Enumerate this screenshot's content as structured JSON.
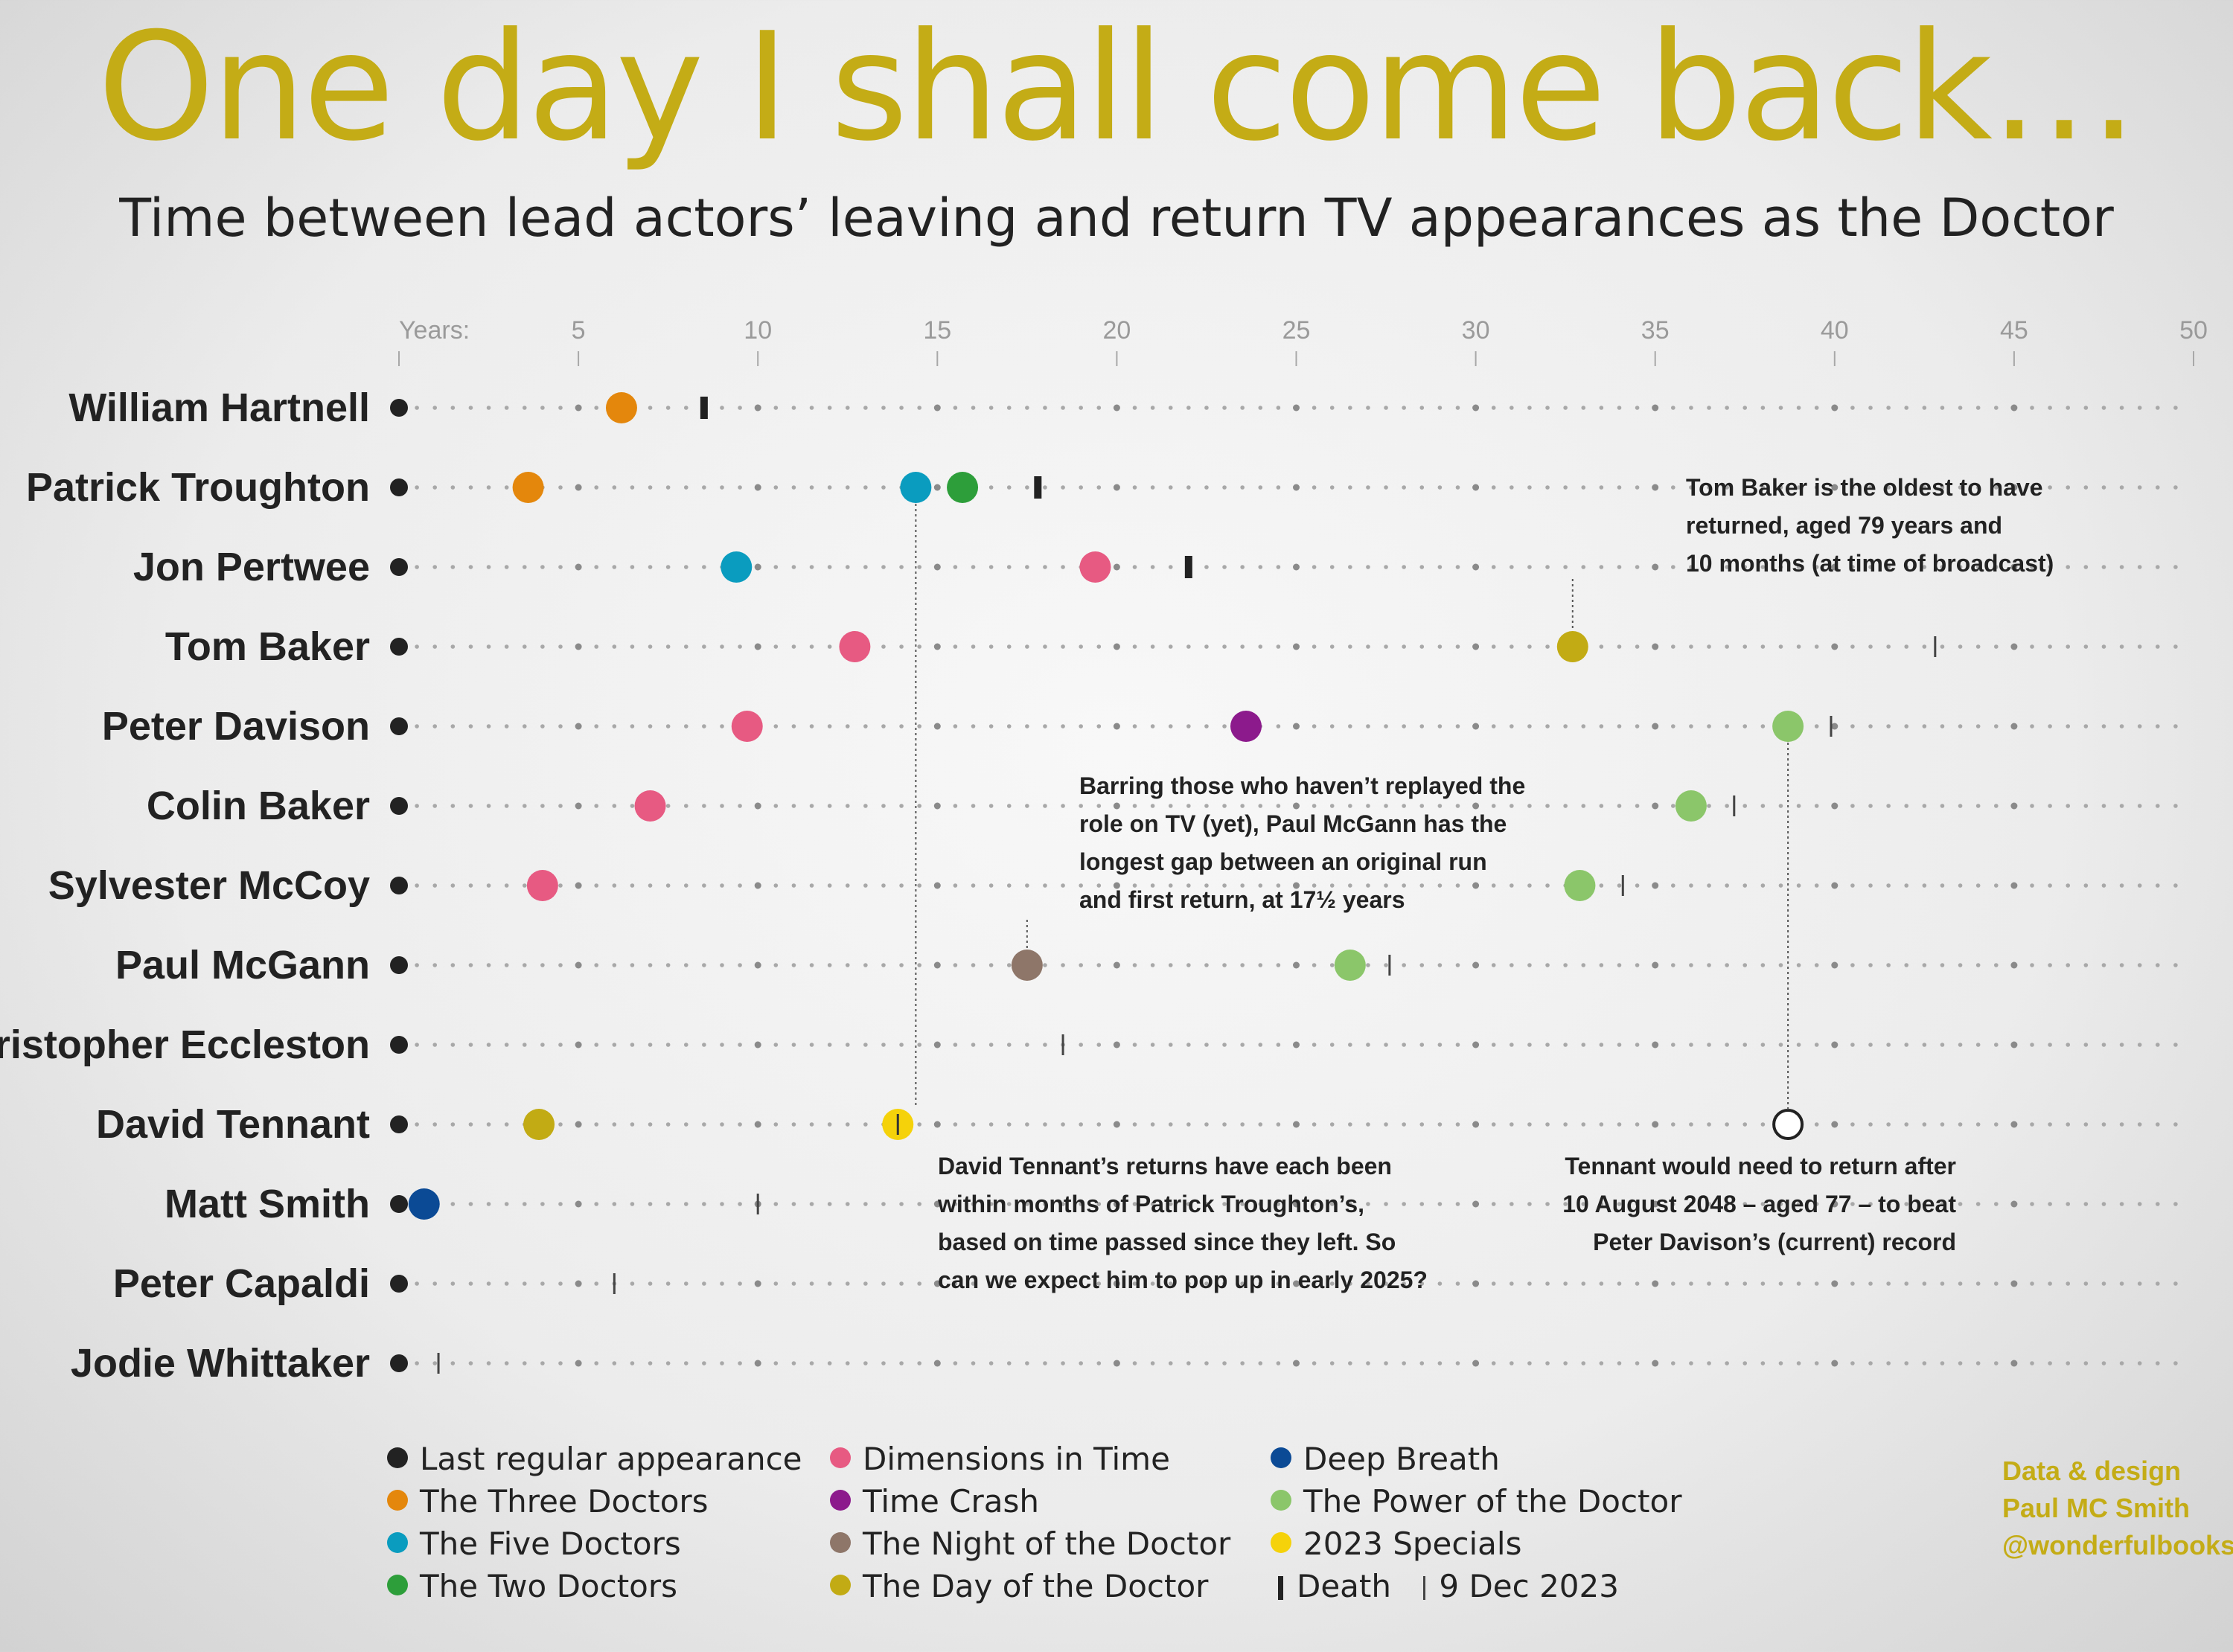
{
  "title": "One day I shall come back…",
  "subtitle": "Time between lead actors’ leaving and return TV appearances as the Doctor",
  "chart_data": {
    "type": "scatter",
    "x_axis_label": "Years:",
    "x_ticks": [
      5,
      10,
      15,
      20,
      25,
      30,
      35,
      40,
      45,
      50
    ],
    "xlim": [
      0,
      50
    ],
    "colors": {
      "last": "#222222",
      "three": "#e4870c",
      "five": "#0a9cbf",
      "two": "#2d9e3a",
      "dimensions": "#e75a82",
      "timecrash": "#8c1a8c",
      "night": "#8e7669",
      "day": "#c2ab14",
      "deepbreath": "#0b4a95",
      "power": "#8bc66a",
      "specials": "#f5d20a"
    },
    "doctors": [
      {
        "name": "William Hartnell",
        "returns": [
          {
            "event": "three",
            "years": 6.2
          }
        ],
        "death": 8.5
      },
      {
        "name": "Patrick Troughton",
        "returns": [
          {
            "event": "three",
            "years": 3.6
          },
          {
            "event": "five",
            "years": 14.4
          },
          {
            "event": "two",
            "years": 15.7
          }
        ],
        "death": 17.8
      },
      {
        "name": "Jon Pertwee",
        "returns": [
          {
            "event": "five",
            "years": 9.4
          },
          {
            "event": "dimensions",
            "years": 19.4
          }
        ],
        "death": 22.0
      },
      {
        "name": "Tom Baker",
        "returns": [
          {
            "event": "dimensions",
            "years": 12.7
          },
          {
            "event": "day",
            "years": 32.7
          }
        ],
        "current": 42.8
      },
      {
        "name": "Peter Davison",
        "returns": [
          {
            "event": "dimensions",
            "years": 9.7
          },
          {
            "event": "timecrash",
            "years": 23.6
          },
          {
            "event": "power",
            "years": 38.7
          }
        ],
        "current": 39.9
      },
      {
        "name": "Colin Baker",
        "returns": [
          {
            "event": "dimensions",
            "years": 7.0
          },
          {
            "event": "power",
            "years": 36.0
          }
        ],
        "current": 37.2
      },
      {
        "name": "Sylvester McCoy",
        "returns": [
          {
            "event": "dimensions",
            "years": 4.0
          },
          {
            "event": "power",
            "years": 32.9
          }
        ],
        "current": 34.1
      },
      {
        "name": "Paul McGann",
        "returns": [
          {
            "event": "night",
            "years": 17.5
          },
          {
            "event": "power",
            "years": 26.5
          }
        ],
        "current": 27.6
      },
      {
        "name": "Christopher Eccleston",
        "returns": [],
        "current": 18.5
      },
      {
        "name": "David Tennant",
        "returns": [
          {
            "event": "day",
            "years": 3.9
          },
          {
            "event": "specials",
            "years": 13.9
          }
        ],
        "projected": 38.7
      },
      {
        "name": "Matt Smith",
        "returns": [
          {
            "event": "deepbreath",
            "years": 0.7
          }
        ],
        "current": 10.0
      },
      {
        "name": "Peter Capaldi",
        "returns": [],
        "current": 6.0
      },
      {
        "name": "Jodie Whittaker",
        "returns": [],
        "current": 1.1
      }
    ],
    "annotations": [
      {
        "id": "tom",
        "lines": [
          "Tom Baker is the oldest to have",
          "returned, aged 79 years and",
          "10 months (at time of broadcast)"
        ]
      },
      {
        "id": "mcgann",
        "lines": [
          "Barring those who haven’t replayed the",
          "role on TV (yet), Paul McGann has the",
          "longest gap between an original run",
          "and first return, at 17½ years"
        ]
      },
      {
        "id": "tennant",
        "lines": [
          "David Tennant’s returns have each been",
          "within months of Patrick Troughton’s,",
          "based on time passed since they left. So",
          "can we expect him to pop up in early 2025?"
        ]
      },
      {
        "id": "record",
        "lines": [
          "Tennant would need to return after",
          "10 August 2048 – aged 77 – to beat",
          "Peter Davison’s (current) record"
        ]
      }
    ]
  },
  "legend": [
    {
      "key": "last",
      "label": "Last regular appearance"
    },
    {
      "key": "three",
      "label": "The Three Doctors"
    },
    {
      "key": "five",
      "label": "The Five Doctors"
    },
    {
      "key": "two",
      "label": "The Two Doctors"
    },
    {
      "key": "dimensions",
      "label": "Dimensions in Time"
    },
    {
      "key": "timecrash",
      "label": "Time Crash"
    },
    {
      "key": "night",
      "label": "The Night of the Doctor"
    },
    {
      "key": "day",
      "label": "The Day of the Doctor"
    },
    {
      "key": "deepbreath",
      "label": "Deep Breath"
    },
    {
      "key": "power",
      "label": "The Power of the Doctor"
    },
    {
      "key": "specials",
      "label": "2023 Specials"
    },
    {
      "key": "death",
      "label": "Death"
    },
    {
      "key": "current",
      "label": "9 Dec 2023"
    }
  ],
  "credit": {
    "line1": "Data & design",
    "line2": "Paul MC Smith",
    "line3": "@wonderfulbooks"
  }
}
